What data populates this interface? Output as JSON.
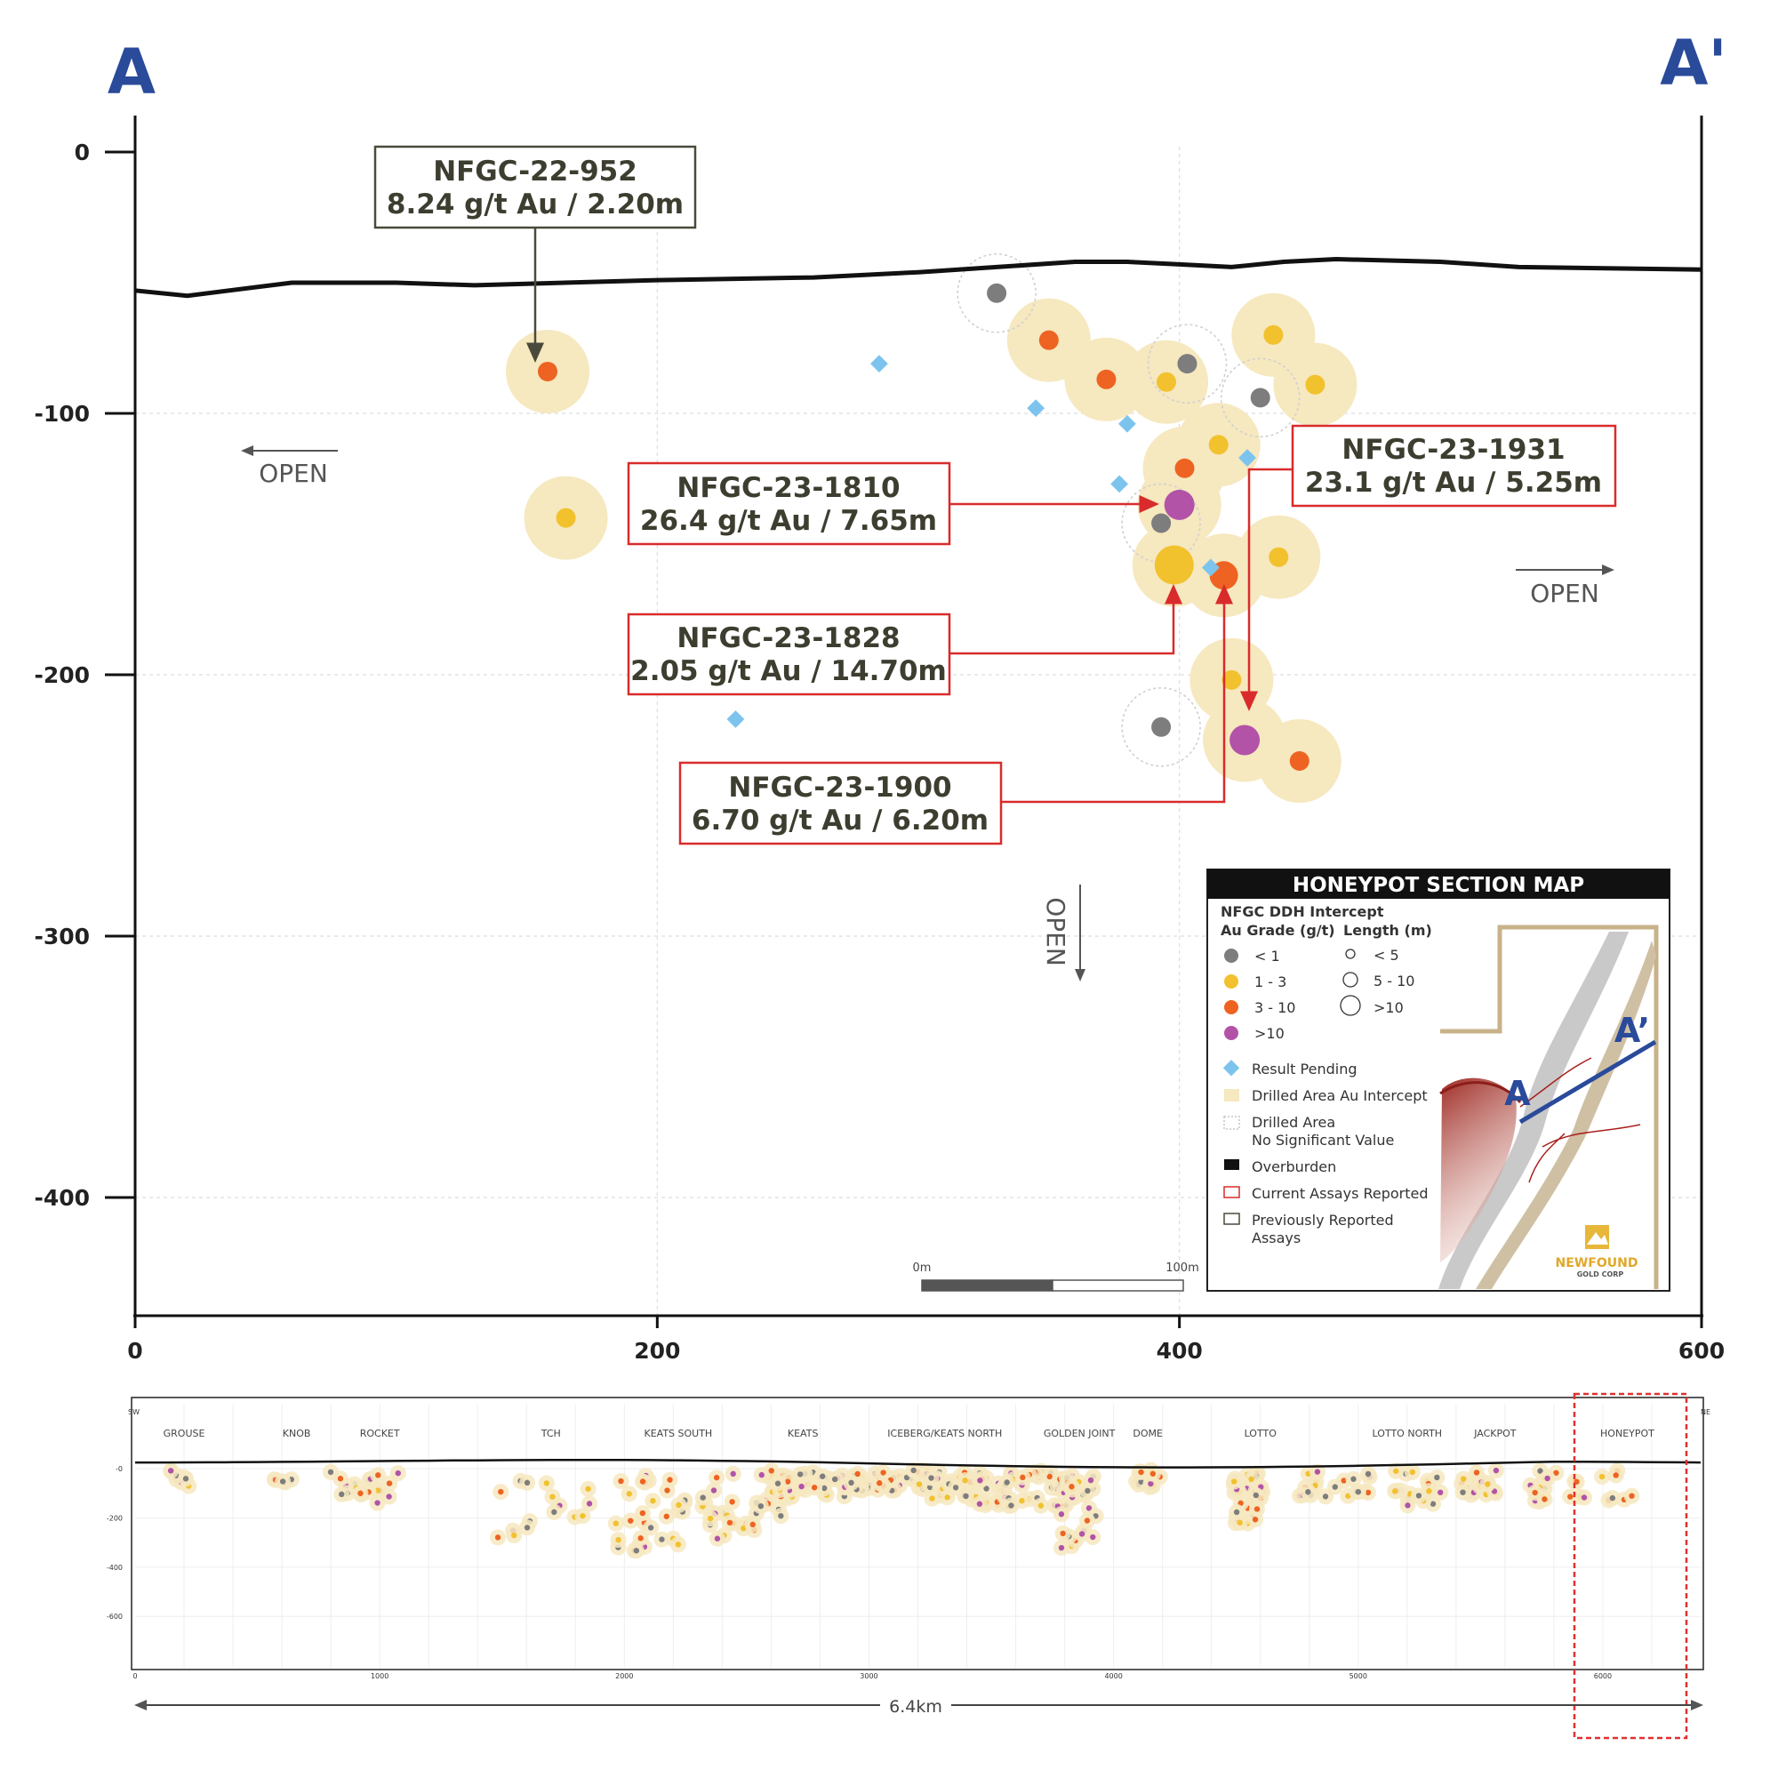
{
  "section_labels": {
    "start": "A",
    "end": "A'"
  },
  "colors": {
    "section_letter": "#2a4a9a",
    "grade_lt1": "#7d7d7d",
    "grade_1_3": "#f2c12e",
    "grade_3_10": "#ee6322",
    "grade_gt10": "#b253a8",
    "pending": "#7cc4ee",
    "halo": "#f6e8bf",
    "current_box": "#d92b2b",
    "previous_box": "#4a4a3c"
  },
  "chart_data": {
    "type": "scatter",
    "x_ticks": [
      "0",
      "200",
      "400",
      "600"
    ],
    "y_ticks": [
      "0",
      "-100",
      "-200",
      "-300",
      "-400"
    ],
    "xlim": [
      0,
      600
    ],
    "ylim": [
      -445,
      0
    ],
    "grid": true,
    "overburden_profile": [
      [
        0,
        -53
      ],
      [
        20,
        -55
      ],
      [
        60,
        -50
      ],
      [
        80,
        -50
      ],
      [
        100,
        -50
      ],
      [
        130,
        -51
      ],
      [
        200,
        -49
      ],
      [
        260,
        -48
      ],
      [
        300,
        -46
      ],
      [
        330,
        -44
      ],
      [
        360,
        -42
      ],
      [
        380,
        -42
      ],
      [
        400,
        -43
      ],
      [
        420,
        -44
      ],
      [
        440,
        -42
      ],
      [
        460,
        -41
      ],
      [
        500,
        -42
      ],
      [
        530,
        -44
      ],
      [
        600,
        -45
      ]
    ],
    "intercepts": [
      {
        "x": 158,
        "y": -84,
        "grade": "3-10",
        "halo": true
      },
      {
        "x": 165,
        "y": -140,
        "grade": "1-3",
        "halo": true
      },
      {
        "x": 330,
        "y": -54,
        "grade": "<1",
        "halo": false
      },
      {
        "x": 350,
        "y": -72,
        "grade": "3-10",
        "halo": true
      },
      {
        "x": 372,
        "y": -87,
        "grade": "3-10",
        "halo": true
      },
      {
        "x": 395,
        "y": -88,
        "grade": "1-3",
        "halo": true
      },
      {
        "x": 403,
        "y": -81,
        "grade": "<1",
        "halo": false
      },
      {
        "x": 436,
        "y": -70,
        "grade": "1-3",
        "halo": true
      },
      {
        "x": 452,
        "y": -89,
        "grade": "1-3",
        "halo": true
      },
      {
        "x": 431,
        "y": -94,
        "grade": "<1",
        "halo": false
      },
      {
        "x": 415,
        "y": -112,
        "grade": "1-3",
        "halo": true
      },
      {
        "x": 402,
        "y": -121,
        "grade": "3-10",
        "halo": true
      },
      {
        "x": 400,
        "y": -135,
        "grade": ">10",
        "halo": true
      },
      {
        "x": 393,
        "y": -142,
        "grade": "<1",
        "halo": false
      },
      {
        "x": 398,
        "y": -158,
        "grade": "1-3",
        "halo": true
      },
      {
        "x": 417,
        "y": -162,
        "grade": "3-10",
        "halo": true
      },
      {
        "x": 438,
        "y": -155,
        "grade": "1-3",
        "halo": true
      },
      {
        "x": 420,
        "y": -202,
        "grade": "1-3",
        "halo": true
      },
      {
        "x": 393,
        "y": -220,
        "grade": "<1",
        "halo": false
      },
      {
        "x": 425,
        "y": -225,
        "grade": ">10",
        "halo": true
      },
      {
        "x": 446,
        "y": -233,
        "grade": "3-10",
        "halo": true
      }
    ],
    "pending": [
      [
        285,
        -81
      ],
      [
        345,
        -98
      ],
      [
        380,
        -104
      ],
      [
        377,
        -127
      ],
      [
        426,
        -117
      ],
      [
        412,
        -159
      ],
      [
        230,
        -217
      ]
    ],
    "no_significant_value": [
      [
        330,
        -54
      ],
      [
        403,
        -81
      ],
      [
        431,
        -94
      ],
      [
        393,
        -142
      ],
      [
        393,
        -220
      ]
    ],
    "callouts": [
      {
        "hole": "NFGC-22-952",
        "result": "8.24 g/t Au / 2.20m",
        "status": "previous"
      },
      {
        "hole": "NFGC-23-1810",
        "result": "26.4 g/t Au / 7.65m",
        "status": "current"
      },
      {
        "hole": "NFGC-23-1931",
        "result": "23.1 g/t Au / 5.25m",
        "status": "current"
      },
      {
        "hole": "NFGC-23-1828",
        "result": "2.05 g/t Au / 14.70m",
        "status": "current"
      },
      {
        "hole": "NFGC-23-1900",
        "result": "6.70 g/t Au / 6.20m",
        "status": "current"
      }
    ]
  },
  "open_labels": {
    "left": "OPEN",
    "right": "OPEN",
    "down": "OPEN"
  },
  "scale_bar": {
    "start_label": "0m",
    "end_label": "100m"
  },
  "legend": {
    "title": "HONEYPOT SECTION MAP",
    "subtitle": "NFGC DDH Intercept",
    "grade_header": "Au Grade (g/t)",
    "length_header": "Length (m)",
    "grades": [
      "< 1",
      "1 - 3",
      "3 - 10",
      ">10"
    ],
    "lengths": [
      "< 5",
      "5 - 10",
      ">10"
    ],
    "items": {
      "pending": "Result Pending",
      "halo": "Drilled Area Au Intercept",
      "nsv_line1": "Drilled Area",
      "nsv_line2": "No Significant Value",
      "overburden": "Overburden",
      "current": "Current Assays Reported",
      "previous_line1": "Previously Reported",
      "previous_line2": "Assays"
    },
    "map_labels": {
      "a": "A",
      "a_prime": "A’"
    },
    "logo_line1": "NEWFOUND",
    "logo_line2": "GOLD CORP"
  },
  "long_section": {
    "sw": "SW",
    "ne": "NE",
    "zones": [
      "GROUSE",
      "KNOB",
      "ROCKET",
      "TCH",
      "KEATS SOUTH",
      "KEATS",
      "ICEBERG/KEATS NORTH",
      "GOLDEN JOINT",
      "DOME",
      "LOTTO",
      "LOTTO NORTH",
      "JACKPOT",
      "HONEYPOT"
    ],
    "zone_x": [
      200,
      660,
      1000,
      1700,
      2220,
      2730,
      3310,
      3860,
      4140,
      4600,
      5200,
      5560,
      6100
    ],
    "y_ticks": [
      "-0",
      "-200",
      "-400",
      "-600"
    ],
    "x_ticks": [
      "0",
      "1000",
      "2000",
      "3000",
      "4000",
      "5000",
      "6000"
    ],
    "extent_label": "6.4km"
  }
}
